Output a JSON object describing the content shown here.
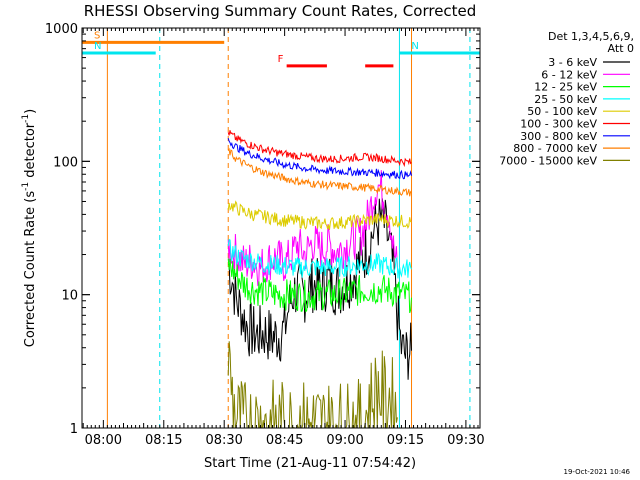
{
  "chart_data": {
    "type": "line",
    "title": "RHESSI Observing Summary Count Rates, Corrected",
    "xlabel": "Start Time (21-Aug-11 07:54:42)",
    "ylabel_parts": [
      "Corrected Count Rate (s",
      "-1",
      " detector",
      "-1",
      ")"
    ],
    "y_scale": "log",
    "ylim": [
      1,
      1000
    ],
    "xlim": [
      "07:54:42",
      "09:33:30"
    ],
    "x_ticks": [
      "08:00",
      "08:15",
      "08:30",
      "08:45",
      "09:00",
      "09:15",
      "09:30"
    ],
    "y_ticks": [
      "1",
      "10",
      "100",
      "1000"
    ],
    "legend_header": [
      "Det 1,3,4,5,6,9,",
      "Att 0"
    ],
    "legend_position": "right",
    "footer": "19-Oct-2021 10:46",
    "flags": [
      {
        "label": "S",
        "color": "#ff7f00",
        "start": "07:54:42",
        "end": "08:30:00",
        "level": 780
      },
      {
        "label": "N",
        "color": "#00e5ee",
        "start": "07:54:42",
        "end": "08:13:00",
        "level": 650
      },
      {
        "label": "N",
        "color": "#00e5ee",
        "start": "09:13:30",
        "end": "09:33:30",
        "level": 650
      },
      {
        "label": "F",
        "color": "#ff0000",
        "segments": [
          [
            "08:45:30",
            "08:55:30"
          ],
          [
            "09:05:00",
            "09:12:00"
          ]
        ],
        "level": 520
      }
    ],
    "vlines": [
      {
        "time": "08:01:00",
        "color": "#ff7f00",
        "style": "solid"
      },
      {
        "time": "08:14:00",
        "color": "#00e5ee",
        "style": "dashed"
      },
      {
        "time": "08:31:00",
        "color": "#ff7f00",
        "style": "dashed"
      },
      {
        "time": "09:13:30",
        "color": "#00e5ee",
        "style": "solid"
      },
      {
        "time": "09:16:30",
        "color": "#ff7f00",
        "style": "solid"
      },
      {
        "time": "09:31:00",
        "color": "#00e5ee",
        "style": "dashed"
      }
    ],
    "series": [
      {
        "name": "3 - 6 keV",
        "color": "#000000",
        "points": [
          [
            "08:31:00",
            17
          ],
          [
            "08:32:00",
            13
          ],
          [
            "08:33:00",
            9
          ],
          [
            "08:34:00",
            8
          ],
          [
            "08:35:00",
            6.5
          ],
          [
            "08:36:00",
            5.5
          ],
          [
            "08:38:00",
            5
          ],
          [
            "08:40:00",
            5.2
          ],
          [
            "08:42:00",
            4.8
          ],
          [
            "08:44:00",
            5
          ],
          [
            "08:45:00",
            5.5
          ],
          [
            "08:46:00",
            8
          ],
          [
            "08:47:00",
            10
          ],
          [
            "08:48:00",
            11
          ],
          [
            "08:50:00",
            10
          ],
          [
            "08:52:00",
            12
          ],
          [
            "08:54:00",
            11
          ],
          [
            "08:56:00",
            13
          ],
          [
            "08:58:00",
            11
          ],
          [
            "09:00:00",
            12
          ],
          [
            "09:02:00",
            14
          ],
          [
            "09:04:00",
            18
          ],
          [
            "09:06:00",
            24
          ],
          [
            "09:07:00",
            30
          ],
          [
            "09:08:00",
            34
          ],
          [
            "09:09:00",
            36
          ],
          [
            "09:10:00",
            32
          ],
          [
            "09:11:00",
            24
          ],
          [
            "09:12:00",
            15
          ],
          [
            "09:13:00",
            7
          ],
          [
            "09:14:00",
            4
          ],
          [
            "09:15:00",
            3.5
          ],
          [
            "09:16:30",
            3.8
          ]
        ]
      },
      {
        "name": "6 - 12 keV",
        "color": "#ff00ff",
        "points": [
          [
            "08:31:00",
            23
          ],
          [
            "08:33:00",
            20
          ],
          [
            "08:35:00",
            17
          ],
          [
            "08:37:00",
            18
          ],
          [
            "08:39:00",
            16
          ],
          [
            "08:41:00",
            18
          ],
          [
            "08:43:00",
            19
          ],
          [
            "08:45:00",
            17
          ],
          [
            "08:47:00",
            20
          ],
          [
            "08:48:00",
            24
          ],
          [
            "08:50:00",
            20
          ],
          [
            "08:52:00",
            25
          ],
          [
            "08:54:00",
            22
          ],
          [
            "08:56:00",
            24
          ],
          [
            "08:58:00",
            21
          ],
          [
            "09:00:00",
            23
          ],
          [
            "09:02:00",
            26
          ],
          [
            "09:04:00",
            28
          ],
          [
            "09:06:00",
            40
          ],
          [
            "09:07:00",
            55
          ],
          [
            "09:08:00",
            68
          ],
          [
            "09:09:00",
            62
          ],
          [
            "09:10:00",
            50
          ],
          [
            "09:11:00",
            40
          ],
          [
            "09:12:00",
            22
          ],
          [
            "09:13:00",
            16
          ]
        ]
      },
      {
        "name": "12 - 25 keV",
        "color": "#00ff00",
        "points": [
          [
            "08:31:00",
            17
          ],
          [
            "08:33:00",
            14
          ],
          [
            "08:35:00",
            12
          ],
          [
            "08:37:00",
            11
          ],
          [
            "08:40:00",
            10.5
          ],
          [
            "08:43:00",
            10
          ],
          [
            "08:46:00",
            10
          ],
          [
            "08:50:00",
            9.8
          ],
          [
            "08:54:00",
            10
          ],
          [
            "08:58:00",
            10
          ],
          [
            "09:02:00",
            10.5
          ],
          [
            "09:06:00",
            11
          ],
          [
            "09:09:00",
            11
          ],
          [
            "09:12:00",
            10.5
          ],
          [
            "09:14:00",
            10
          ],
          [
            "09:16:30",
            9.5
          ]
        ]
      },
      {
        "name": "25 - 50 keV",
        "color": "#00ffff",
        "points": [
          [
            "08:31:00",
            22
          ],
          [
            "08:34:00",
            19
          ],
          [
            "08:37:00",
            18
          ],
          [
            "08:40:00",
            17
          ],
          [
            "08:44:00",
            16.5
          ],
          [
            "08:48:00",
            16
          ],
          [
            "08:52:00",
            16
          ],
          [
            "08:56:00",
            16
          ],
          [
            "09:00:00",
            16.3
          ],
          [
            "09:04:00",
            16.8
          ],
          [
            "09:08:00",
            17
          ],
          [
            "09:12:00",
            16
          ],
          [
            "09:16:30",
            15.5
          ]
        ]
      },
      {
        "name": "50 - 100 keV",
        "color": "#ddcc00",
        "points": [
          [
            "08:31:00",
            48
          ],
          [
            "08:34:00",
            43
          ],
          [
            "08:37:00",
            40
          ],
          [
            "08:41:00",
            38
          ],
          [
            "08:45:00",
            36
          ],
          [
            "08:50:00",
            35
          ],
          [
            "08:55:00",
            34
          ],
          [
            "09:00:00",
            35
          ],
          [
            "09:05:00",
            36
          ],
          [
            "09:09:00",
            37
          ],
          [
            "09:12:00",
            36
          ],
          [
            "09:16:30",
            35
          ]
        ]
      },
      {
        "name": "100 - 300 keV",
        "color": "#ff0000",
        "points": [
          [
            "08:31:00",
            165
          ],
          [
            "08:33:00",
            148
          ],
          [
            "08:36:00",
            135
          ],
          [
            "08:40:00",
            122
          ],
          [
            "08:44:00",
            115
          ],
          [
            "08:48:00",
            110
          ],
          [
            "08:52:00",
            106
          ],
          [
            "08:56:00",
            104
          ],
          [
            "09:00:00",
            105
          ],
          [
            "09:04:00",
            108
          ],
          [
            "09:08:00",
            106
          ],
          [
            "09:12:00",
            102
          ],
          [
            "09:16:30",
            98
          ]
        ]
      },
      {
        "name": "300 - 800 keV",
        "color": "#0000ff",
        "points": [
          [
            "08:31:00",
            145
          ],
          [
            "08:33:00",
            128
          ],
          [
            "08:36:00",
            115
          ],
          [
            "08:40:00",
            104
          ],
          [
            "08:44:00",
            96
          ],
          [
            "08:48:00",
            91
          ],
          [
            "08:52:00",
            87
          ],
          [
            "08:56:00",
            85
          ],
          [
            "09:00:00",
            84
          ],
          [
            "09:04:00",
            83
          ],
          [
            "09:08:00",
            82
          ],
          [
            "09:12:00",
            80
          ],
          [
            "09:16:30",
            78
          ]
        ]
      },
      {
        "name": "800 - 7000 keV",
        "color": "#ff7f00",
        "points": [
          [
            "08:31:00",
            120
          ],
          [
            "08:33:00",
            104
          ],
          [
            "08:36:00",
            92
          ],
          [
            "08:40:00",
            82
          ],
          [
            "08:44:00",
            76
          ],
          [
            "08:48:00",
            71
          ],
          [
            "08:52:00",
            68
          ],
          [
            "08:56:00",
            66
          ],
          [
            "09:00:00",
            65
          ],
          [
            "09:04:00",
            64
          ],
          [
            "09:08:00",
            62
          ],
          [
            "09:12:00",
            60
          ],
          [
            "09:16:30",
            58
          ]
        ]
      },
      {
        "name": "7000 - 15000 keV",
        "color": "#808000",
        "points": [
          [
            "08:31:00",
            3.5
          ],
          [
            "08:31:30",
            2.5
          ],
          [
            "08:32:00",
            1.8
          ],
          [
            "08:32:30",
            1.4
          ],
          [
            "08:33:00",
            1.2
          ],
          [
            "08:34:00",
            1.1
          ],
          [
            "08:35:00",
            1.05
          ],
          [
            "09:04:00",
            1.05
          ],
          [
            "09:05:00",
            1.2
          ],
          [
            "09:06:00",
            1.5
          ],
          [
            "09:07:00",
            1.7
          ],
          [
            "09:08:00",
            1.9
          ],
          [
            "09:09:00",
            1.8
          ],
          [
            "09:10:00",
            1.6
          ],
          [
            "09:11:00",
            1.7
          ],
          [
            "09:12:00",
            1.5
          ],
          [
            "09:13:00",
            1.2
          ]
        ]
      }
    ]
  }
}
